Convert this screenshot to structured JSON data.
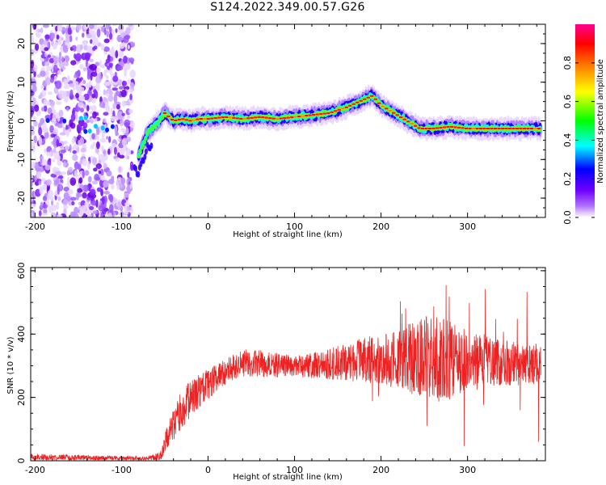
{
  "title": "S124.2022.349.00.57.G26",
  "chart_data": [
    {
      "type": "heatmap",
      "xlabel": "Height of straight line (km)",
      "ylabel": "Frequency (Hz)",
      "xlim": [
        -205,
        390
      ],
      "ylim": [
        -25,
        25
      ],
      "xticks": [
        -200,
        -100,
        0,
        100,
        200,
        300
      ],
      "yticks": [
        -20,
        -10,
        0,
        10,
        20
      ],
      "colorbar": {
        "label": "Normalized spectral amplitude",
        "range": [
          0,
          1
        ],
        "ticks": [
          "0.0",
          "0.2",
          "0.4",
          "0.6",
          "0.8"
        ],
        "colormap": [
          "#ffffff",
          "#8000ff",
          "#0000ff",
          "#00ffff",
          "#00ff00",
          "#ffff00",
          "#ff8000",
          "#ff0000",
          "#ff00a0"
        ]
      },
      "ridge": {
        "x": [
          -80,
          -70,
          -60,
          -50,
          -40,
          -30,
          -20,
          -10,
          0,
          20,
          40,
          60,
          80,
          100,
          120,
          140,
          160,
          175,
          190,
          200,
          215,
          230,
          245,
          260,
          280,
          300,
          320,
          340,
          360,
          385
        ],
        "y": [
          -9,
          -3,
          -1,
          2,
          0,
          0.5,
          0,
          0.5,
          0.5,
          1,
          0.5,
          1,
          0.5,
          1,
          1.5,
          2,
          3.5,
          5,
          6.5,
          4,
          2,
          0,
          -2,
          -2,
          -1.5,
          -2,
          -2,
          -2,
          -2,
          -2
        ]
      },
      "noise_region": {
        "x_range": [
          -205,
          -95
        ],
        "y_range": [
          -25,
          25
        ]
      }
    },
    {
      "type": "line",
      "xlabel": "Height of straight line (km)",
      "ylabel": "SNR (10 * v/v)",
      "xlim": [
        -205,
        390
      ],
      "ylim": [
        0,
        610
      ],
      "xticks": [
        -200,
        -100,
        0,
        100,
        200,
        300
      ],
      "yticks": [
        0,
        200,
        400,
        600
      ],
      "series": [
        {
          "color": "#ee2222",
          "x": [
            -205,
            -150,
            -100,
            -70,
            -55,
            -45,
            -35,
            -25,
            -15,
            0,
            10,
            20,
            30,
            40,
            50,
            60,
            80,
            100,
            120,
            140,
            160,
            180,
            200,
            220,
            240,
            260,
            280,
            300,
            320,
            340,
            360,
            385
          ],
          "y": [
            12,
            10,
            8,
            8,
            15,
            90,
            140,
            180,
            210,
            240,
            265,
            280,
            300,
            305,
            310,
            305,
            300,
            300,
            300,
            305,
            310,
            320,
            315,
            320,
            325,
            330,
            310,
            320,
            320,
            310,
            300,
            300
          ],
          "spread": [
            10,
            9,
            7,
            6,
            15,
            45,
            60,
            60,
            55,
            50,
            45,
            40,
            45,
            45,
            45,
            45,
            40,
            35,
            40,
            50,
            60,
            70,
            80,
            95,
            120,
            140,
            130,
            90,
            80,
            75,
            70,
            60
          ]
        }
      ]
    }
  ]
}
